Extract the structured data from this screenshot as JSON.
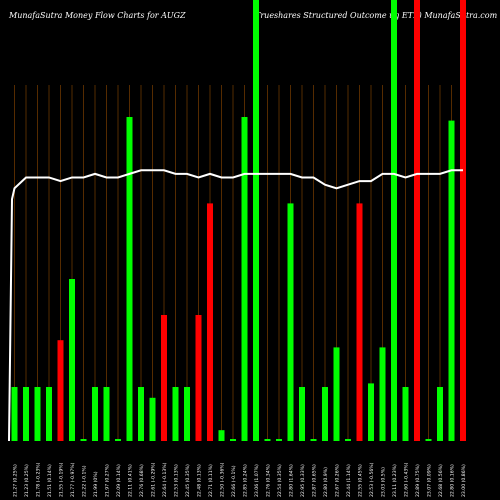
{
  "header": {
    "left": "MunafaSutra  Money Flow  Charts for AUGZ",
    "right": "Trueshares Structured Outcome      ug ETF) MunafaSutra.com"
  },
  "colors": {
    "up": "#00ff00",
    "down": "#ff0000",
    "line": "#ffffff",
    "grid": "#7a3e00",
    "background": "#000000"
  },
  "chart_data": {
    "type": "bar",
    "categories": [
      "21.27 (0.25%)",
      "21.23 (0.25%)",
      "21.78 (-0.23%)",
      "21.51 (0.14%)",
      "21.55 (-0.19%)",
      "21.77 (-0.97%)",
      "22.22 (-0.1%)",
      "21.99 (0%)",
      "21.97 (0.27%)",
      "22.09 (0.14%)",
      "22.11 (0.41%)",
      "22.76 (0.68%)",
      "22.61 (-0.29%)",
      "22.64 (-0.13%)",
      "22.53 (0.13%)",
      "22.45 (0.35%)",
      "22.48 (0.13%)",
      "22.71 (0.11%)",
      "22.50 (-0.36%)",
      "22.66 (-0.1%)",
      "22.85 (0.24%)",
      "23.06 (1.07%)",
      "22.76 (0.34%)",
      "22.54 (0.35%)",
      "22.80 (1.64%)",
      "22.95 (0.33%)",
      "22.87 (0.65%)",
      "22.80 (0.9%)",
      "22.67 (0.26%)",
      "22.44 (1.14%)",
      "22.55 (0.45%)",
      "22.53 (-0.56%)",
      "23.03 (0.5%)",
      "23.11 (0.23%)",
      "22.60 (-0.43%)",
      "22.89 (0.75%)",
      "23.07 (0.09%)",
      "22.68 (0.56%)",
      "22.80 (0.16%)",
      "23.00 (0.86%)"
    ],
    "values": [
      15,
      15,
      15,
      15,
      28,
      45,
      0,
      15,
      15,
      0,
      90,
      15,
      12,
      35,
      15,
      15,
      35,
      66,
      3,
      0,
      90,
      100,
      0,
      0,
      66,
      15,
      0,
      15,
      26,
      0,
      66,
      16,
      26,
      100,
      15,
      100,
      0,
      15,
      89,
      100
    ],
    "directions": [
      "up",
      "up",
      "up",
      "up",
      "down",
      "up",
      "up",
      "up",
      "up",
      "up",
      "up",
      "up",
      "up",
      "down",
      "up",
      "up",
      "down",
      "down",
      "up",
      "up",
      "up",
      "up",
      "up",
      "up",
      "up",
      "up",
      "up",
      "up",
      "up",
      "up",
      "down",
      "up",
      "up",
      "up",
      "up",
      "down",
      "up",
      "up",
      "up",
      "down"
    ],
    "ylim": [
      0,
      100
    ],
    "line": [
      70,
      73,
      73,
      73,
      72,
      73,
      73,
      74,
      73,
      73,
      74,
      75,
      75,
      75,
      74,
      74,
      73,
      74,
      73,
      73,
      74,
      74,
      74,
      74,
      74,
      73,
      73,
      71,
      70,
      71,
      72,
      72,
      74,
      74,
      73,
      74,
      74,
      74,
      75,
      75
    ],
    "line_start": 67,
    "grid": true,
    "legend": "none"
  }
}
